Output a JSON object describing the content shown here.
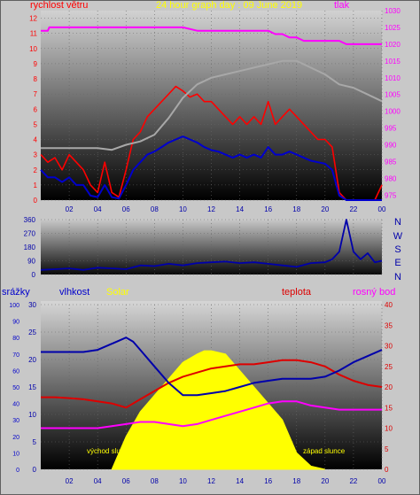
{
  "header": {
    "left_label": "rychlost větru",
    "center_title": "24 hour graph day : 09 June 2019",
    "right_label": "tlak"
  },
  "colors": {
    "wind": "#ff0000",
    "gust": "#0000cc",
    "pressure": "#ff00ff",
    "direction": "#0000aa",
    "temperature": "#dd0000",
    "dew_point": "#ff00ff",
    "humidity": "#0000aa",
    "solar": "#ffff00",
    "left_axis": "#ff0000",
    "right_axis": "#ff00ff",
    "humidity_axis": "#0000cc",
    "title": "#ffff00"
  },
  "chart_data": [
    {
      "type": "line",
      "name": "wind-and-pressure",
      "x_ticks": [
        "02",
        "04",
        "06",
        "08",
        "10",
        "12",
        "14",
        "16",
        "18",
        "20",
        "22",
        "00"
      ],
      "xlim": [
        0,
        24
      ],
      "left_axis": {
        "ticks": [
          "0",
          "1",
          "2",
          "3",
          "4",
          "5",
          "6",
          "7",
          "8",
          "9",
          "10",
          "11",
          "12"
        ],
        "ylim": [
          0,
          12.5
        ]
      },
      "right_axis": {
        "ticks": [
          "975",
          "980",
          "985",
          "990",
          "995",
          "1000",
          "1005",
          "1010",
          "1015",
          "1020",
          "1025",
          "1030"
        ],
        "ylim": [
          973.5,
          1030
        ]
      },
      "series": [
        {
          "key": "wind_max",
          "axis": "left",
          "color": "#ff0000",
          "x": [
            0,
            0.5,
            1,
            1.5,
            2,
            2.5,
            3,
            3.5,
            4,
            4.5,
            5,
            5.5,
            6,
            6.5,
            7,
            7.5,
            8,
            8.5,
            9,
            9.5,
            10,
            10.5,
            11,
            11.5,
            12,
            12.5,
            13,
            13.5,
            14,
            14.5,
            15,
            15.5,
            16,
            16.5,
            17,
            17.5,
            18,
            18.5,
            19,
            19.5,
            20,
            20.5,
            21,
            21.5,
            22,
            22.5,
            23,
            23.5,
            24
          ],
          "y": [
            3,
            2.5,
            2.8,
            2,
            3,
            2.5,
            2,
            1,
            0.5,
            2.5,
            0.5,
            0.2,
            2,
            4,
            4.5,
            5.5,
            6,
            6.5,
            7,
            7.5,
            7.2,
            6.8,
            7,
            6.5,
            6.5,
            6,
            5.5,
            5,
            5.5,
            5,
            5.5,
            5,
            6.5,
            5,
            5.5,
            6,
            5.5,
            5,
            4.5,
            4,
            4,
            3.5,
            0.5,
            0,
            0,
            0,
            0,
            0,
            1
          ]
        },
        {
          "key": "wind_avg",
          "axis": "left",
          "color": "#0000cc",
          "x": [
            0,
            0.5,
            1,
            1.5,
            2,
            2.5,
            3,
            3.5,
            4,
            4.5,
            5,
            5.5,
            6,
            6.5,
            7,
            7.5,
            8,
            8.5,
            9,
            9.5,
            10,
            10.5,
            11,
            11.5,
            12,
            12.5,
            13,
            13.5,
            14,
            14.5,
            15,
            15.5,
            16,
            16.5,
            17,
            17.5,
            18,
            18.5,
            19,
            19.5,
            20,
            20.5,
            21,
            21.5,
            22,
            22.5,
            23,
            23.5,
            24
          ],
          "y": [
            2,
            1.5,
            1.5,
            1.2,
            1.5,
            1,
            1,
            0.3,
            0.2,
            1,
            0.2,
            0.1,
            1,
            2,
            2.5,
            3,
            3.2,
            3.5,
            3.8,
            4,
            4.2,
            4,
            3.8,
            3.5,
            3.3,
            3.2,
            3,
            2.8,
            3,
            2.8,
            3,
            2.8,
            3.5,
            3,
            3,
            3.2,
            3,
            2.8,
            2.6,
            2.5,
            2.4,
            2,
            0.3,
            0,
            0,
            0,
            0,
            0,
            0
          ]
        },
        {
          "key": "pressure",
          "axis": "right",
          "color": "#ff00ff",
          "x": [
            0,
            0.5,
            0.6,
            8,
            10,
            11,
            12,
            13,
            14,
            15,
            16,
            16.5,
            17,
            17.5,
            18,
            18.5,
            19,
            19.5,
            20,
            20.5,
            21,
            21.5,
            22,
            23,
            24
          ],
          "y": [
            1024,
            1024,
            1025,
            1025,
            1025,
            1024,
            1024,
            1024,
            1024,
            1024,
            1024,
            1023,
            1023,
            1022,
            1022,
            1021,
            1021,
            1021,
            1021,
            1021,
            1021,
            1020,
            1020,
            1020,
            1020
          ]
        },
        {
          "key": "pressure_trace",
          "axis": "right",
          "color": "#a8a8a8",
          "x": [
            0,
            1,
            2,
            3,
            4,
            5,
            6,
            7,
            8,
            9,
            10,
            11,
            12,
            13,
            14,
            15,
            16,
            17,
            18,
            19,
            20,
            21,
            22,
            23,
            24
          ],
          "y": [
            989,
            989,
            989,
            989,
            989,
            988.5,
            990,
            991,
            993,
            998,
            1004,
            1008,
            1010,
            1011,
            1012,
            1013,
            1014,
            1015,
            1015,
            1013,
            1011,
            1008,
            1007,
            1005,
            1003
          ]
        }
      ]
    },
    {
      "type": "line",
      "name": "wind-direction",
      "x_ticks": [
        "02",
        "04",
        "06",
        "08",
        "10",
        "12",
        "14",
        "16",
        "18",
        "20",
        "22",
        "00"
      ],
      "xlim": [
        0,
        24
      ],
      "y_ticks": [
        "0",
        "90",
        "180",
        "270",
        "360"
      ],
      "ylim": [
        0,
        360
      ],
      "compass": [
        "N",
        "W",
        "S",
        "E",
        "N"
      ],
      "series": [
        {
          "key": "direction",
          "color": "#0000aa",
          "x": [
            0,
            1,
            2,
            3,
            4,
            5,
            6,
            7,
            8,
            9,
            10,
            11,
            12,
            13,
            14,
            15,
            16,
            17,
            18,
            19,
            20,
            20.5,
            21,
            21.5,
            22,
            22.5,
            23,
            23.5,
            24
          ],
          "y": [
            30,
            35,
            40,
            30,
            45,
            40,
            35,
            60,
            55,
            70,
            60,
            75,
            80,
            85,
            75,
            80,
            70,
            60,
            50,
            75,
            80,
            100,
            150,
            360,
            150,
            100,
            140,
            80,
            90
          ]
        }
      ]
    },
    {
      "type": "line",
      "name": "temperature-humidity-solar",
      "x_ticks": [
        "02",
        "04",
        "06",
        "08",
        "10",
        "12",
        "14",
        "16",
        "18",
        "20",
        "22",
        "00"
      ],
      "xlim": [
        0,
        24
      ],
      "header": {
        "srazky": "srážky",
        "vlhkost": "vlhkost",
        "solar": "Solar",
        "teplota": "teplota",
        "rosny_bod": "rosný bod"
      },
      "axis_precip": {
        "ticks": [
          "0",
          "10",
          "20",
          "30",
          "40",
          "50",
          "60",
          "70",
          "80",
          "90",
          "100"
        ],
        "ylim": [
          0,
          100
        ]
      },
      "axis_humidity": {
        "ticks": [
          "0",
          "5",
          "10",
          "15",
          "20",
          "25",
          "30"
        ],
        "ylim": [
          0,
          30
        ]
      },
      "axis_temp": {
        "ticks": [
          "0",
          "5",
          "10",
          "15",
          "20",
          "25",
          "30",
          "35",
          "40"
        ],
        "ylim": [
          0,
          40
        ]
      },
      "annotations": {
        "sunrise": "východ slu",
        "sunset": "západ slunce"
      },
      "series": [
        {
          "key": "temperature",
          "axis": "temp",
          "color": "#dd0000",
          "x": [
            0,
            1,
            2,
            3,
            4,
            5,
            6,
            7,
            8,
            9,
            10,
            11,
            12,
            13,
            14,
            15,
            16,
            17,
            18,
            19,
            20,
            21,
            22,
            23,
            24
          ],
          "y": [
            17.5,
            17.5,
            17.3,
            17,
            16.5,
            16,
            15,
            17,
            19,
            21,
            22.5,
            23.5,
            24.5,
            25,
            25.5,
            25.5,
            26,
            26.5,
            26.5,
            26,
            25,
            23,
            21.5,
            20.5,
            20
          ]
        },
        {
          "key": "humidity",
          "axis": "temp",
          "color": "#0000aa",
          "x": [
            0,
            1,
            2,
            3,
            4,
            5,
            6,
            6.5,
            7,
            8,
            9,
            10,
            11,
            12,
            13,
            14,
            15,
            16,
            17,
            18,
            19,
            20,
            21,
            22,
            23,
            24
          ],
          "y": [
            28.5,
            28.5,
            28.5,
            28.5,
            29,
            30.5,
            32,
            31,
            29,
            25,
            21,
            18,
            18,
            18.5,
            19,
            20,
            21,
            21.5,
            22,
            22,
            22,
            22.5,
            24,
            26,
            27.5,
            29
          ]
        },
        {
          "key": "dew_point",
          "axis": "temp",
          "color": "#ff00ff",
          "x": [
            0,
            1,
            2,
            3,
            4,
            5,
            6,
            7,
            8,
            9,
            10,
            11,
            12,
            13,
            14,
            15,
            16,
            17,
            18,
            19,
            20,
            21,
            22,
            23,
            24
          ],
          "y": [
            10,
            10,
            10,
            10,
            10,
            10.5,
            11,
            11.5,
            11.5,
            11,
            10.5,
            11,
            12,
            13,
            14,
            15,
            16,
            16.5,
            16.5,
            15.5,
            15,
            14.5,
            14.5,
            14.5,
            14.5
          ]
        },
        {
          "key": "solar",
          "axis": "precip",
          "type": "area",
          "color": "#ffff00",
          "x": [
            5,
            6,
            7,
            8,
            9,
            10,
            11,
            11.5,
            12,
            13,
            14,
            15,
            16,
            17,
            18,
            19,
            20
          ],
          "y": [
            0,
            20,
            35,
            45,
            55,
            65,
            70,
            72,
            72,
            70,
            60,
            50,
            40,
            30,
            10,
            2,
            0
          ]
        }
      ]
    }
  ]
}
